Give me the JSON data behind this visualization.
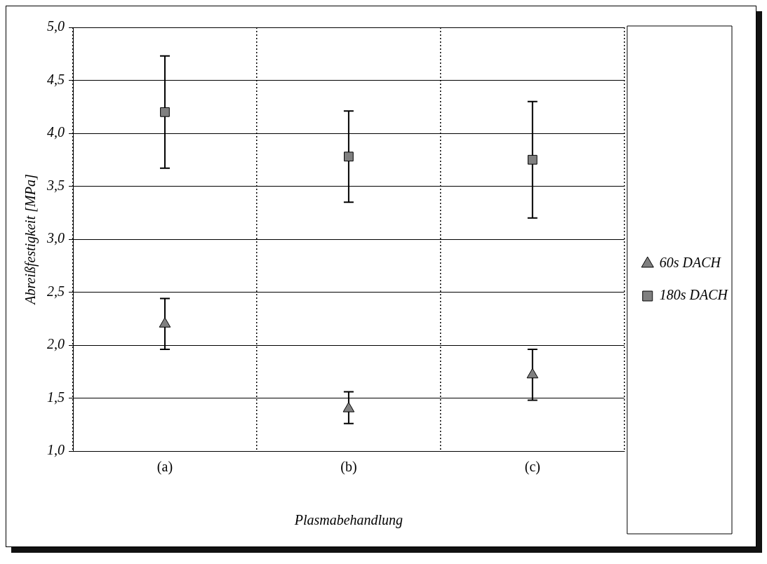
{
  "chart_data": {
    "type": "scatter",
    "xlabel": "Plasmabehandlung",
    "ylabel": "Abreißfestigkeit [MPa]",
    "categories": [
      "(a)",
      "(b)",
      "(c)"
    ],
    "series": [
      {
        "name": "60s DACH",
        "color": "#808080",
        "marker": "triangle",
        "values": [
          2.2,
          1.4,
          1.72
        ],
        "errors": [
          [
            1.96,
            2.44
          ],
          [
            1.26,
            1.56
          ],
          [
            1.48,
            1.96
          ]
        ]
      },
      {
        "name": "180s DACH",
        "color": "#808080",
        "marker": "square",
        "values": [
          4.2,
          3.78,
          3.75
        ],
        "errors": [
          [
            3.67,
            4.73
          ],
          [
            3.35,
            4.21
          ],
          [
            3.2,
            4.3
          ]
        ]
      }
    ],
    "ylim": [
      1.0,
      5.0
    ],
    "yticks": [
      {
        "value": 1.0,
        "label": "1,0"
      },
      {
        "value": 1.5,
        "label": "1,5"
      },
      {
        "value": 2.0,
        "label": "2,0"
      },
      {
        "value": 2.5,
        "label": "2,5"
      },
      {
        "value": 3.0,
        "label": "3,0"
      },
      {
        "value": 3.5,
        "label": "3,5"
      },
      {
        "value": 4.0,
        "label": "4,0"
      },
      {
        "value": 4.5,
        "label": "4,5"
      },
      {
        "value": 5.0,
        "label": "5,0"
      }
    ],
    "grid": true,
    "legend": "right"
  }
}
